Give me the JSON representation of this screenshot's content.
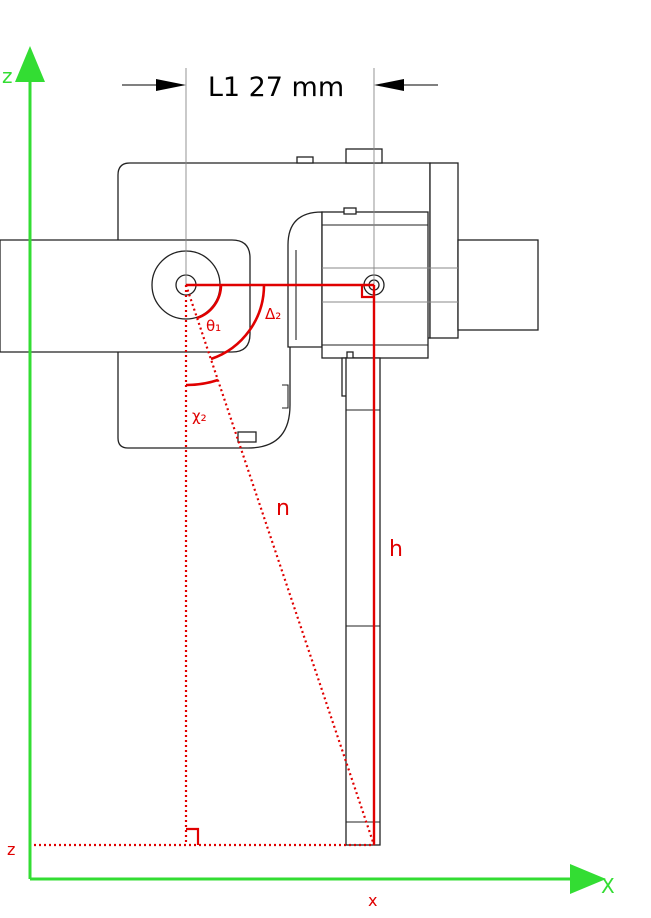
{
  "dimension": {
    "label": "L1 27 mm"
  },
  "labels": {
    "theta": "θ₁",
    "delta": "Δ₂",
    "gamma": "χ₂",
    "n": "n",
    "h": "h"
  },
  "axes": {
    "z_axis_label": "z",
    "x_axis_label": "X",
    "z_marker": "z",
    "x_marker": "x"
  },
  "colors": {
    "annotation": "#e00000",
    "axis": "#33dd33",
    "outline": "#222222"
  }
}
